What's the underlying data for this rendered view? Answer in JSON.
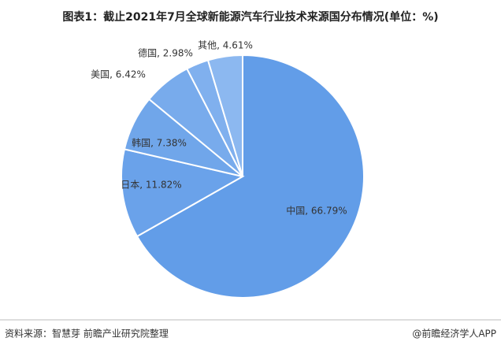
{
  "chart_data": {
    "type": "pie",
    "title": "图表1：截止2021年7月全球新能源汽车行业技术来源国分布情况(单位：%)",
    "categories": [
      "中国",
      "日本",
      "韩国",
      "美国",
      "德国",
      "其他"
    ],
    "values": [
      66.79,
      11.82,
      7.38,
      6.42,
      2.98,
      4.61
    ],
    "value_labels": [
      "中国, 66.79%",
      "日本, 11.82%",
      "韩国, 7.38%",
      "美国, 6.42%",
      "德国, 2.98%",
      "其他, 4.61%"
    ],
    "colors": [
      "#629de8",
      "#6aa2ea",
      "#70a6ea",
      "#78abec",
      "#80b0ee",
      "#8cb8f0"
    ],
    "source": "资料来源：智慧芽 前瞻产业研究院整理",
    "credit": "@前瞻经济学人APP"
  }
}
